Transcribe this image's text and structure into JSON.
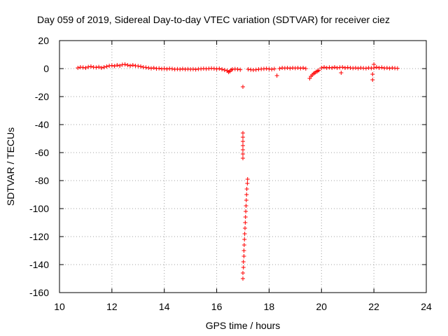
{
  "chart_data": {
    "type": "scatter",
    "title": "Day 059 of 2019, Sidereal Day-to-day VTEC variation (SDTVAR) for receiver ciez",
    "xlabel": "GPS time / hours",
    "ylabel": "SDTVAR / TECUs",
    "xlim": [
      10,
      24
    ],
    "ylim": [
      -160,
      20
    ],
    "xticks": [
      10,
      12,
      14,
      16,
      18,
      20,
      22,
      24
    ],
    "yticks": [
      20,
      0,
      -20,
      -40,
      -60,
      -80,
      -100,
      -120,
      -140,
      -160
    ],
    "grid": true,
    "marker": "+",
    "color": "#ff0000",
    "series": [
      {
        "name": "SDTVAR",
        "points": [
          [
            10.7,
            0.5
          ],
          [
            10.8,
            1.0
          ],
          [
            10.9,
            0.8
          ],
          [
            11.0,
            0.5
          ],
          [
            11.1,
            1.2
          ],
          [
            11.2,
            1.5
          ],
          [
            11.3,
            1.0
          ],
          [
            11.4,
            0.8
          ],
          [
            11.5,
            1.2
          ],
          [
            11.6,
            0.5
          ],
          [
            11.7,
            1.0
          ],
          [
            11.8,
            1.5
          ],
          [
            11.9,
            2.0
          ],
          [
            12.0,
            2.2
          ],
          [
            12.1,
            1.8
          ],
          [
            12.2,
            2.5
          ],
          [
            12.3,
            2.0
          ],
          [
            12.4,
            2.8
          ],
          [
            12.5,
            3.0
          ],
          [
            12.6,
            2.5
          ],
          [
            12.7,
            2.0
          ],
          [
            12.8,
            2.5
          ],
          [
            12.9,
            2.0
          ],
          [
            13.0,
            1.8
          ],
          [
            13.1,
            1.5
          ],
          [
            13.2,
            1.0
          ],
          [
            13.3,
            0.8
          ],
          [
            13.4,
            0.5
          ],
          [
            13.5,
            0.2
          ],
          [
            13.6,
            0.5
          ],
          [
            13.7,
            0.0
          ],
          [
            13.8,
            0.2
          ],
          [
            13.9,
            -0.2
          ],
          [
            14.0,
            0.0
          ],
          [
            14.1,
            -0.3
          ],
          [
            14.2,
            0.0
          ],
          [
            14.3,
            -0.2
          ],
          [
            14.4,
            -0.5
          ],
          [
            14.5,
            -0.3
          ],
          [
            14.6,
            -0.5
          ],
          [
            14.7,
            -0.2
          ],
          [
            14.8,
            -0.5
          ],
          [
            14.9,
            -0.3
          ],
          [
            15.0,
            -0.5
          ],
          [
            15.1,
            -0.4
          ],
          [
            15.2,
            -0.6
          ],
          [
            15.3,
            -0.3
          ],
          [
            15.4,
            -0.2
          ],
          [
            15.5,
            0.0
          ],
          [
            15.6,
            -0.2
          ],
          [
            15.7,
            0.0
          ],
          [
            15.8,
            0.2
          ],
          [
            15.9,
            0.0
          ],
          [
            16.0,
            -0.3
          ],
          [
            16.1,
            0.0
          ],
          [
            16.2,
            -0.5
          ],
          [
            16.3,
            -1.0
          ],
          [
            16.4,
            -1.5
          ],
          [
            16.45,
            -2.5
          ],
          [
            16.5,
            -2.0
          ],
          [
            16.55,
            -1.0
          ],
          [
            16.6,
            -0.5
          ],
          [
            16.7,
            -0.3
          ],
          [
            16.8,
            -0.5
          ],
          [
            16.9,
            -0.8
          ],
          [
            17.0,
            -13.0
          ],
          [
            17.0,
            -46
          ],
          [
            17.0,
            -49
          ],
          [
            17.0,
            -52
          ],
          [
            17.0,
            -55
          ],
          [
            17.0,
            -58
          ],
          [
            17.0,
            -61
          ],
          [
            17.0,
            -64
          ],
          [
            17.0,
            -150
          ],
          [
            17.0,
            -146
          ],
          [
            17.02,
            -142
          ],
          [
            17.02,
            -138
          ],
          [
            17.04,
            -134
          ],
          [
            17.04,
            -130
          ],
          [
            17.05,
            -126
          ],
          [
            17.06,
            -122
          ],
          [
            17.07,
            -118
          ],
          [
            17.08,
            -114
          ],
          [
            17.09,
            -110
          ],
          [
            17.1,
            -106
          ],
          [
            17.11,
            -102
          ],
          [
            17.12,
            -98
          ],
          [
            17.13,
            -94
          ],
          [
            17.14,
            -90
          ],
          [
            17.15,
            -86
          ],
          [
            17.17,
            -82
          ],
          [
            17.18,
            -79
          ],
          [
            17.2,
            -0.5
          ],
          [
            17.3,
            -0.8
          ],
          [
            17.4,
            -1.0
          ],
          [
            17.5,
            -0.8
          ],
          [
            17.6,
            -0.5
          ],
          [
            17.7,
            -0.3
          ],
          [
            17.8,
            -0.2
          ],
          [
            17.9,
            0.0
          ],
          [
            18.0,
            -0.3
          ],
          [
            18.1,
            -0.5
          ],
          [
            18.2,
            -0.2
          ],
          [
            18.3,
            -5.0
          ],
          [
            18.4,
            0.0
          ],
          [
            18.5,
            0.5
          ],
          [
            18.6,
            0.3
          ],
          [
            18.7,
            0.5
          ],
          [
            18.8,
            0.2
          ],
          [
            18.9,
            0.5
          ],
          [
            19.0,
            0.3
          ],
          [
            19.1,
            0.5
          ],
          [
            19.2,
            0.2
          ],
          [
            19.3,
            0.5
          ],
          [
            19.4,
            0.0
          ],
          [
            19.55,
            -7.0
          ],
          [
            19.6,
            -5.5
          ],
          [
            19.65,
            -4.5
          ],
          [
            19.7,
            -3.5
          ],
          [
            19.75,
            -3.0
          ],
          [
            19.8,
            -2.2
          ],
          [
            19.85,
            -1.8
          ],
          [
            19.9,
            -1.2
          ],
          [
            20.0,
            0.5
          ],
          [
            20.1,
            1.0
          ],
          [
            20.2,
            0.5
          ],
          [
            20.3,
            0.8
          ],
          [
            20.4,
            0.5
          ],
          [
            20.5,
            1.0
          ],
          [
            20.6,
            0.5
          ],
          [
            20.7,
            0.8
          ],
          [
            20.75,
            -3.0
          ],
          [
            20.8,
            1.0
          ],
          [
            20.9,
            0.5
          ],
          [
            21.0,
            0.8
          ],
          [
            21.1,
            0.5
          ],
          [
            21.2,
            0.3
          ],
          [
            21.3,
            0.5
          ],
          [
            21.4,
            0.2
          ],
          [
            21.5,
            0.5
          ],
          [
            21.6,
            0.3
          ],
          [
            21.7,
            0.2
          ],
          [
            21.8,
            0.5
          ],
          [
            21.9,
            0.3
          ],
          [
            21.95,
            -4.0
          ],
          [
            21.95,
            -8.0
          ],
          [
            22.0,
            3.0
          ],
          [
            22.0,
            0.5
          ],
          [
            22.1,
            1.0
          ],
          [
            22.2,
            0.5
          ],
          [
            22.3,
            0.8
          ],
          [
            22.4,
            0.3
          ],
          [
            22.5,
            0.5
          ],
          [
            22.6,
            0.2
          ],
          [
            22.7,
            0.5
          ],
          [
            22.8,
            0.3
          ],
          [
            22.9,
            0.2
          ]
        ]
      }
    ]
  }
}
